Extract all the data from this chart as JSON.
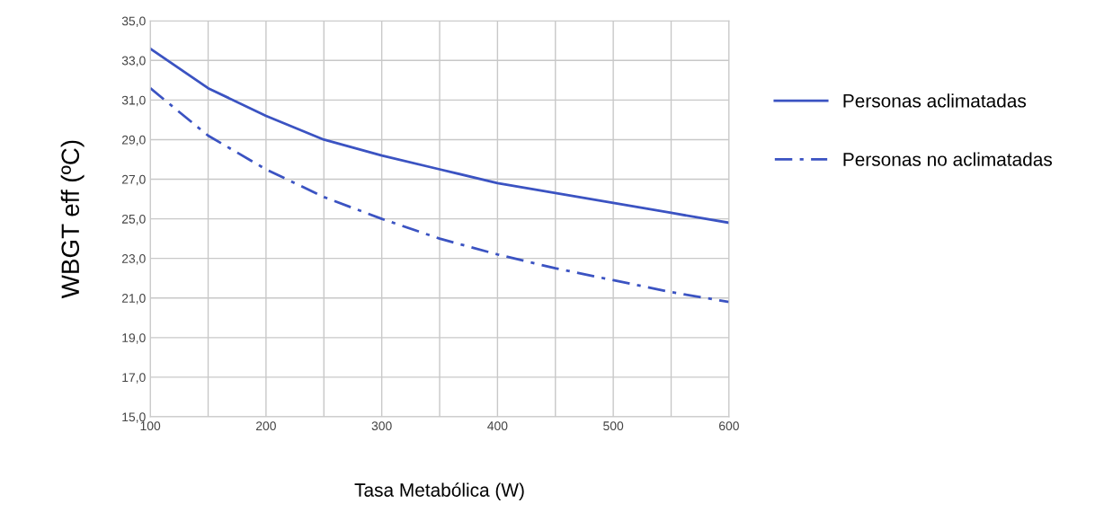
{
  "chart_data": {
    "type": "line",
    "xlabel": "Tasa Metabólica (W)",
    "ylabel": "WBGT eff (ºC)",
    "x": [
      100,
      150,
      200,
      250,
      300,
      350,
      400,
      450,
      500,
      550,
      600
    ],
    "series": [
      {
        "name": "Personas aclimatadas",
        "color": "#3b53c2",
        "line_style": "solid",
        "values": [
          33.6,
          31.6,
          30.2,
          29.0,
          28.2,
          27.5,
          26.8,
          26.3,
          25.8,
          25.3,
          24.8
        ]
      },
      {
        "name": "Personas no aclimatadas",
        "color": "#3b53c2",
        "line_style": "dashed",
        "values": [
          31.6,
          29.2,
          27.5,
          26.1,
          25.0,
          24.0,
          23.2,
          22.5,
          21.9,
          21.3,
          20.8
        ]
      }
    ],
    "xlim": [
      100,
      600
    ],
    "ylim": [
      15,
      35
    ],
    "xticks": [
      100,
      {
        "value": 150,
        "label": null
      },
      200,
      {
        "value": 250,
        "label": null
      },
      300,
      {
        "value": 350,
        "label": null
      },
      400,
      {
        "value": 450,
        "label": null
      },
      500,
      {
        "value": 550,
        "label": null
      },
      600
    ],
    "yticks": [
      {
        "value": 15,
        "label": "15,0"
      },
      {
        "value": 17,
        "label": "17,0"
      },
      {
        "value": 19,
        "label": "19,0"
      },
      {
        "value": 21,
        "label": "21,0"
      },
      {
        "value": 23,
        "label": "23,0"
      },
      {
        "value": 25,
        "label": "25,0"
      },
      {
        "value": 27,
        "label": "27,0"
      },
      {
        "value": 29,
        "label": "29,0"
      },
      {
        "value": 31,
        "label": "31,0"
      },
      {
        "value": 33,
        "label": "33,0"
      },
      {
        "value": 35,
        "label": "35,0"
      }
    ],
    "grid": true,
    "legend": "right",
    "marker": "none"
  }
}
